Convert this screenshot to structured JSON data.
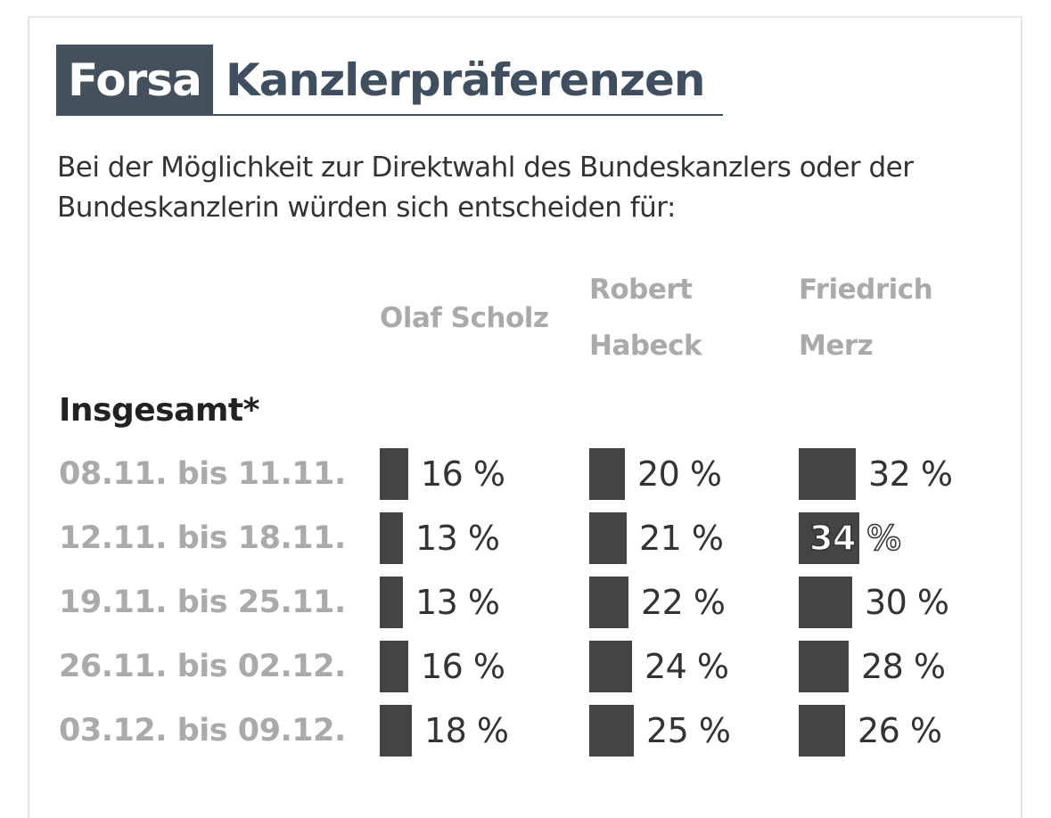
{
  "header": {
    "badge": "Forsa",
    "title": "Kanzlerpräferenzen",
    "subtitle": "Bei der Möglichkeit zur Direktwahl des Bundeskanzlers oder der Bundeskanzlerin würden sich entscheiden für:"
  },
  "colors": {
    "bar": "#444444",
    "badge_bg": "#44505c",
    "label_gray": "#aaaaaa"
  },
  "chart_data": {
    "type": "bar",
    "title": "Kanzlerpräferenzen",
    "group": "Insgesamt*",
    "unit": "%",
    "categories": [
      "08.11. bis 11.11.",
      "12.11. bis 18.11.",
      "19.11. bis 25.11.",
      "26.11. bis 02.12.",
      "03.12. bis 09.12."
    ],
    "series": [
      {
        "name": "Olaf Scholz",
        "name_lines": [
          "Olaf Scholz"
        ],
        "values": [
          16,
          13,
          13,
          16,
          18
        ]
      },
      {
        "name": "Robert Habeck",
        "name_lines": [
          "Robert",
          "Habeck"
        ],
        "values": [
          20,
          21,
          22,
          24,
          25
        ]
      },
      {
        "name": "Friedrich Merz",
        "name_lines": [
          "Friedrich",
          "Merz"
        ],
        "values": [
          32,
          34,
          30,
          28,
          26
        ]
      }
    ],
    "highlight": {
      "series": 2,
      "row": 1
    },
    "labels": [
      [
        "16 %",
        "20 %",
        "32 %"
      ],
      [
        "13 %",
        "21 %",
        "34 %"
      ],
      [
        "13 %",
        "22 %",
        "30 %"
      ],
      [
        "16 %",
        "24 %",
        "28 %"
      ],
      [
        "18 %",
        "25 %",
        "26 %"
      ]
    ]
  }
}
